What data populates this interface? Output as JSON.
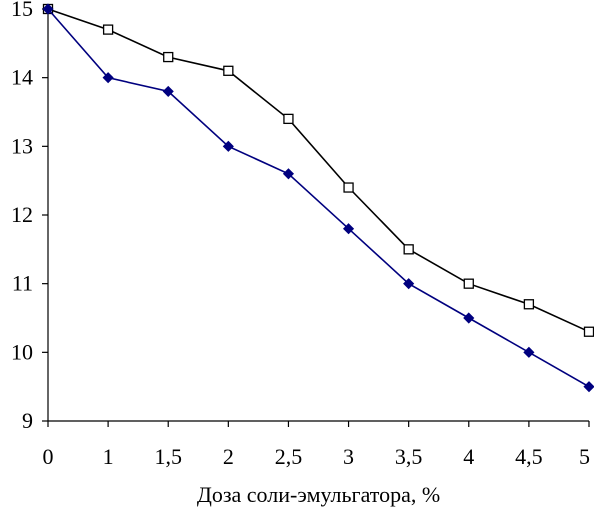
{
  "chart_data": {
    "type": "line",
    "title": "",
    "xlabel": "Доза соли-эмульгатора, %",
    "ylabel": "",
    "categories": [
      "0",
      "1",
      "1,5",
      "2",
      "2,5",
      "3",
      "3,5",
      "4",
      "4,5",
      "5"
    ],
    "yticks": [
      "9",
      "10",
      "11",
      "12",
      "13",
      "14",
      "15"
    ],
    "ylim": [
      9,
      15
    ],
    "grid": false,
    "legend": "none",
    "series": [
      {
        "marker": "open-square",
        "color": "#000000",
        "values": [
          15.0,
          14.7,
          14.3,
          14.1,
          13.4,
          12.4,
          11.5,
          11.0,
          10.7,
          10.3
        ]
      },
      {
        "marker": "filled-diamond",
        "color": "#00007f",
        "values": [
          15.0,
          14.0,
          13.8,
          13.0,
          12.6,
          11.8,
          11.0,
          10.5,
          10.0,
          9.5
        ]
      }
    ]
  }
}
